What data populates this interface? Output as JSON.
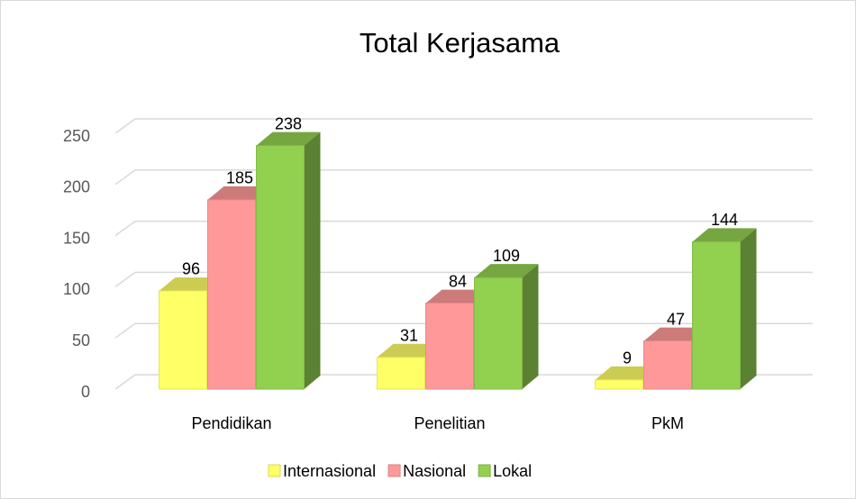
{
  "chart_data": {
    "type": "bar3d",
    "title": "Total Kerjasama",
    "categories": [
      "Pendidikan",
      "Penelitian",
      "PkM"
    ],
    "series": [
      {
        "name": "Internasional",
        "color": "#ffff66",
        "values": [
          96,
          31,
          9
        ]
      },
      {
        "name": "Nasional",
        "color": "#ff9999",
        "values": [
          185,
          84,
          47
        ]
      },
      {
        "name": "Lokal",
        "color": "#92d050",
        "values": [
          238,
          109,
          144
        ]
      }
    ],
    "ylim": [
      0,
      250
    ],
    "yticks": [
      0,
      50,
      100,
      150,
      200,
      250
    ],
    "grid": true,
    "legend": "bottom"
  }
}
